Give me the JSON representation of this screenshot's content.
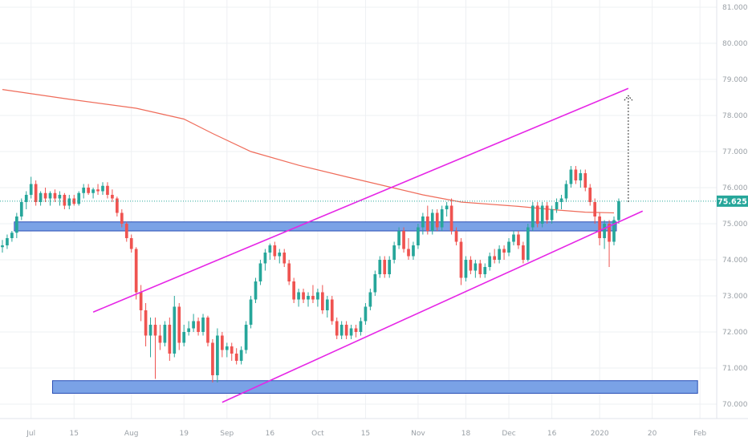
{
  "colors": {
    "bull": "#26a69a",
    "bear": "#ef5350",
    "ma_line": "#ef6c5a",
    "channel": "#e626e6",
    "zone_fill": "#7aa2e6",
    "zone_stroke": "#2a4fb5",
    "price_line": "#26a69a",
    "grid": "#eef0f3",
    "text": "#9aa0a6"
  },
  "chart_data": {
    "type": "candlestick",
    "ylim": [
      69.6,
      81.2
    ],
    "y_ticks": [
      "81.000",
      "80.000",
      "79.000",
      "78.000",
      "77.000",
      "76.000",
      "75.000",
      "74.000",
      "73.000",
      "72.000",
      "71.000",
      "70.000"
    ],
    "x_tick_labels": [
      "Jul",
      "15",
      "Aug",
      "19",
      "Sep",
      "16",
      "Oct",
      "15",
      "Nov",
      "18",
      "Dec",
      "16",
      "2020",
      "20",
      "Feb"
    ],
    "last_price": "75.625",
    "candles": [
      [
        74.35,
        74.55,
        74.2,
        74.4
      ],
      [
        74.4,
        74.7,
        74.3,
        74.6
      ],
      [
        74.6,
        74.8,
        74.5,
        74.75
      ],
      [
        74.75,
        75.3,
        74.6,
        75.2
      ],
      [
        75.2,
        75.7,
        75.1,
        75.6
      ],
      [
        75.6,
        75.9,
        75.4,
        75.8
      ],
      [
        75.8,
        76.3,
        75.7,
        76.1
      ],
      [
        76.1,
        76.2,
        75.5,
        75.6
      ],
      [
        75.6,
        75.9,
        75.5,
        75.85
      ],
      [
        75.85,
        76.0,
        75.6,
        75.7
      ],
      [
        75.7,
        75.9,
        75.5,
        75.85
      ],
      [
        75.85,
        75.95,
        75.6,
        75.7
      ],
      [
        75.7,
        75.9,
        75.5,
        75.8
      ],
      [
        75.8,
        75.85,
        75.4,
        75.5
      ],
      [
        75.5,
        75.8,
        75.4,
        75.7
      ],
      [
        75.7,
        75.8,
        75.5,
        75.55
      ],
      [
        75.55,
        75.9,
        75.5,
        75.85
      ],
      [
        75.85,
        76.1,
        75.7,
        76.0
      ],
      [
        76.0,
        76.1,
        75.8,
        75.85
      ],
      [
        75.85,
        76.0,
        75.7,
        75.95
      ],
      [
        75.95,
        76.1,
        75.8,
        75.9
      ],
      [
        75.9,
        76.15,
        75.8,
        76.05
      ],
      [
        76.05,
        76.15,
        75.7,
        75.8
      ],
      [
        75.8,
        75.95,
        75.6,
        75.7
      ],
      [
        75.7,
        75.75,
        75.2,
        75.3
      ],
      [
        75.3,
        75.4,
        74.9,
        75.0
      ],
      [
        75.0,
        75.05,
        74.5,
        74.6
      ],
      [
        74.6,
        74.7,
        74.2,
        74.3
      ],
      [
        74.3,
        74.35,
        72.9,
        73.1
      ],
      [
        73.1,
        73.3,
        72.3,
        72.6
      ],
      [
        72.6,
        72.8,
        71.6,
        71.9
      ],
      [
        71.9,
        72.4,
        71.3,
        72.2
      ],
      [
        72.2,
        72.4,
        70.7,
        71.9
      ],
      [
        71.9,
        72.2,
        71.5,
        71.7
      ],
      [
        71.7,
        72.3,
        71.6,
        72.2
      ],
      [
        72.2,
        72.4,
        71.2,
        71.4
      ],
      [
        71.4,
        73.0,
        71.3,
        72.7
      ],
      [
        72.7,
        72.8,
        71.5,
        71.7
      ],
      [
        71.7,
        72.2,
        71.6,
        72.0
      ],
      [
        72.0,
        72.3,
        71.9,
        72.1
      ],
      [
        72.1,
        72.5,
        72.0,
        72.3
      ],
      [
        72.3,
        72.4,
        71.9,
        72.0
      ],
      [
        72.0,
        72.5,
        71.9,
        72.4
      ],
      [
        72.4,
        72.45,
        71.6,
        71.7
      ],
      [
        71.7,
        71.8,
        70.6,
        70.8
      ],
      [
        70.8,
        72.1,
        70.6,
        71.9
      ],
      [
        71.9,
        72.0,
        71.3,
        71.5
      ],
      [
        71.5,
        71.7,
        71.3,
        71.6
      ],
      [
        71.6,
        71.7,
        71.2,
        71.4
      ],
      [
        71.4,
        71.55,
        71.1,
        71.2
      ],
      [
        71.2,
        71.6,
        71.1,
        71.5
      ],
      [
        71.5,
        72.3,
        71.4,
        72.2
      ],
      [
        72.2,
        73.0,
        72.1,
        72.9
      ],
      [
        72.9,
        73.5,
        72.8,
        73.4
      ],
      [
        73.4,
        74.0,
        73.3,
        73.9
      ],
      [
        73.9,
        74.3,
        73.7,
        74.2
      ],
      [
        74.2,
        74.45,
        74.0,
        74.4
      ],
      [
        74.4,
        74.5,
        74.0,
        74.1
      ],
      [
        74.1,
        74.3,
        73.9,
        74.2
      ],
      [
        74.2,
        74.3,
        73.8,
        73.9
      ],
      [
        73.9,
        74.0,
        73.3,
        73.4
      ],
      [
        73.4,
        73.5,
        72.8,
        72.9
      ],
      [
        72.9,
        73.2,
        72.7,
        73.1
      ],
      [
        73.1,
        73.2,
        72.8,
        72.9
      ],
      [
        72.9,
        73.1,
        72.7,
        73.0
      ],
      [
        73.0,
        73.3,
        72.8,
        72.9
      ],
      [
        72.9,
        73.2,
        72.7,
        73.1
      ],
      [
        73.1,
        73.3,
        72.5,
        72.6
      ],
      [
        72.6,
        73.0,
        72.4,
        72.9
      ],
      [
        72.9,
        73.0,
        72.2,
        72.3
      ],
      [
        72.3,
        72.4,
        71.8,
        71.9
      ],
      [
        71.9,
        72.3,
        71.8,
        72.2
      ],
      [
        72.2,
        72.3,
        71.8,
        71.9
      ],
      [
        71.9,
        72.2,
        71.8,
        72.1
      ],
      [
        72.1,
        72.2,
        71.85,
        72.0
      ],
      [
        72.0,
        72.4,
        71.9,
        72.3
      ],
      [
        72.3,
        72.8,
        72.2,
        72.7
      ],
      [
        72.7,
        73.2,
        72.6,
        73.1
      ],
      [
        73.1,
        73.7,
        73.0,
        73.6
      ],
      [
        73.6,
        74.1,
        73.5,
        74.0
      ],
      [
        74.0,
        74.1,
        73.5,
        73.6
      ],
      [
        73.6,
        74.1,
        73.5,
        74.0
      ],
      [
        74.0,
        74.5,
        73.9,
        74.4
      ],
      [
        74.4,
        74.9,
        74.3,
        74.8
      ],
      [
        74.8,
        74.9,
        74.2,
        74.3
      ],
      [
        74.3,
        74.6,
        74.0,
        74.1
      ],
      [
        74.1,
        74.5,
        74.0,
        74.4
      ],
      [
        74.4,
        75.0,
        74.3,
        74.9
      ],
      [
        74.9,
        75.3,
        74.7,
        75.2
      ],
      [
        75.2,
        75.5,
        74.7,
        74.8
      ],
      [
        74.8,
        75.4,
        74.7,
        75.3
      ],
      [
        75.3,
        75.4,
        74.8,
        74.9
      ],
      [
        74.9,
        75.5,
        74.8,
        75.4
      ],
      [
        75.4,
        75.6,
        75.2,
        75.5
      ],
      [
        75.5,
        75.7,
        74.7,
        74.8
      ],
      [
        74.8,
        74.9,
        74.4,
        74.5
      ],
      [
        74.5,
        74.6,
        73.3,
        73.5
      ],
      [
        73.5,
        74.1,
        73.4,
        74.0
      ],
      [
        74.0,
        74.1,
        73.6,
        73.7
      ],
      [
        73.7,
        74.0,
        73.5,
        73.9
      ],
      [
        73.9,
        74.0,
        73.5,
        73.6
      ],
      [
        73.6,
        73.9,
        73.5,
        73.8
      ],
      [
        73.8,
        74.2,
        73.7,
        74.1
      ],
      [
        74.1,
        74.3,
        73.9,
        74.0
      ],
      [
        74.0,
        74.4,
        73.9,
        74.3
      ],
      [
        74.3,
        74.4,
        74.0,
        74.2
      ],
      [
        74.2,
        74.6,
        74.1,
        74.5
      ],
      [
        74.5,
        74.8,
        74.4,
        74.7
      ],
      [
        74.7,
        74.8,
        74.3,
        74.4
      ],
      [
        74.4,
        74.5,
        73.9,
        74.0
      ],
      [
        74.0,
        75.0,
        73.95,
        74.9
      ],
      [
        74.9,
        75.6,
        74.8,
        75.5
      ],
      [
        75.5,
        75.6,
        74.9,
        75.0
      ],
      [
        75.0,
        75.6,
        74.9,
        75.5
      ],
      [
        75.5,
        75.6,
        75.0,
        75.1
      ],
      [
        75.1,
        75.5,
        75.0,
        75.4
      ],
      [
        75.4,
        75.7,
        75.3,
        75.6
      ],
      [
        75.6,
        75.8,
        75.4,
        75.7
      ],
      [
        75.7,
        76.2,
        75.6,
        76.1
      ],
      [
        76.1,
        76.6,
        76.0,
        76.5
      ],
      [
        76.5,
        76.6,
        76.1,
        76.2
      ],
      [
        76.2,
        76.5,
        76.0,
        76.4
      ],
      [
        76.4,
        76.5,
        75.9,
        76.0
      ],
      [
        76.0,
        76.1,
        75.5,
        75.6
      ],
      [
        75.6,
        75.7,
        75.0,
        75.2
      ],
      [
        75.2,
        75.3,
        74.4,
        74.6
      ],
      [
        74.6,
        75.1,
        74.3,
        75.0
      ],
      [
        75.0,
        75.1,
        73.8,
        74.5
      ],
      [
        74.5,
        75.2,
        74.4,
        75.1
      ],
      [
        75.1,
        75.7,
        75.0,
        75.625
      ]
    ],
    "moving_average": [
      [
        0,
        78.72
      ],
      [
        14,
        78.45
      ],
      [
        28,
        78.2
      ],
      [
        38,
        77.9
      ],
      [
        44,
        77.5
      ],
      [
        52,
        77.0
      ],
      [
        62,
        76.62
      ],
      [
        72,
        76.3
      ],
      [
        80,
        76.05
      ],
      [
        88,
        75.8
      ],
      [
        96,
        75.6
      ],
      [
        108,
        75.48
      ],
      [
        116,
        75.38
      ],
      [
        122,
        75.32
      ],
      [
        128,
        75.3
      ]
    ],
    "support_zones": [
      {
        "y_low": 74.8,
        "y_high": 75.05,
        "x_from": 3,
        "x_to": 129
      },
      {
        "y_low": 70.3,
        "y_high": 70.65,
        "x_from": 11,
        "x_to": 146
      }
    ],
    "channel_lines": [
      {
        "from": [
          19,
          72.55
        ],
        "to": [
          131,
          78.75
        ]
      },
      {
        "from": [
          46,
          70.05
        ],
        "to": [
          134,
          75.35
        ]
      }
    ],
    "projection_arrow": {
      "x": 131,
      "from": 75.6,
      "to": 78.55
    }
  }
}
